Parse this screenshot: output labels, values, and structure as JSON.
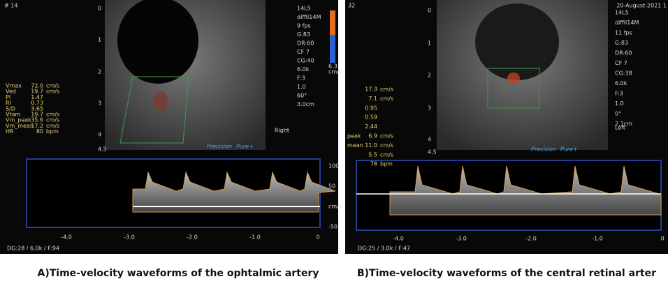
{
  "panels": [
    {
      "caption": "A)Time-velocity waveforms of the ophtalmic artery",
      "header": "# 14",
      "settings": [
        "14L5",
        "diffil14M",
        "9 fps",
        "G:83",
        "DR:60",
        "CF 7",
        "CG:40",
        "6.0k",
        "F:3",
        "1.0",
        "60°",
        "3.0cm"
      ],
      "side": "Right",
      "color_scale": [
        "6.3",
        "cm/s"
      ],
      "depth_ticks": [
        "0",
        "1",
        "2",
        "3",
        "4",
        "4.5"
      ],
      "measurements": [
        {
          "label": "Vmax",
          "value": "72.0",
          "unit": "cm/s"
        },
        {
          "label": "Ved",
          "value": "19.7",
          "unit": "cm/s"
        },
        {
          "label": "PI",
          "value": "1.47"
        },
        {
          "label": "RI",
          "value": "0.73"
        },
        {
          "label": "S/D",
          "value": "3.65"
        },
        {
          "label": "Vtam",
          "value": "19.7",
          "unit": "cm/s"
        },
        {
          "label": "Vm_peak",
          "value": "35.6",
          "unit": "cm/s"
        },
        {
          "label": "Vm_mean",
          "value": "17.2",
          "unit": "cm/s"
        },
        {
          "label": "HR",
          "value": "80",
          "unit": "bpm"
        }
      ],
      "velocity_ticks": [
        "100",
        "50",
        "cm/s",
        "-50"
      ],
      "time_ticks": [
        "-4.0",
        "-3.0",
        "-2.0",
        "-1.0",
        "0"
      ],
      "footer": "DG:28 / 6.0k / F:94",
      "brand": [
        "Precision",
        "Pure+"
      ]
    },
    {
      "caption": "B)Time-velocity waveforms of the central retinal arter",
      "header": "32",
      "date": "20-August-2021 1",
      "settings": [
        "14L5",
        "diffil14M",
        "11 fps",
        "G:83",
        "DR:60",
        "CF 7",
        "CG:38",
        "6.0k",
        "F:3",
        "1.0",
        "0°",
        "2.1cm"
      ],
      "side": "Left",
      "depth_ticks": [
        "0",
        "1",
        "2",
        "3",
        "4",
        "4.5"
      ],
      "measurements": [
        {
          "value": "17.3",
          "unit": "cm/s"
        },
        {
          "value": "7.1",
          "unit": "cm/s"
        },
        {
          "value": "0.95"
        },
        {
          "value": "0.59"
        },
        {
          "value": "2.44"
        },
        {
          "label": "peak",
          "value": "6.9",
          "unit": "cm/s"
        },
        {
          "label": "mean",
          "value": "11.0",
          "unit": "cm/s"
        },
        {
          "value": "5.5",
          "unit": "cm/s"
        },
        {
          "value": "78",
          "unit": "bpm"
        }
      ],
      "time_ticks": [
        "-4.0",
        "-3.0",
        "-2.0",
        "-1.0",
        "0"
      ],
      "footer": "DG:25 / 3.0k / F:47",
      "brand": [
        "Precision",
        "Pure+"
      ]
    }
  ]
}
